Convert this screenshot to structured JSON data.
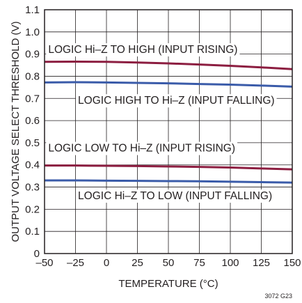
{
  "chart_data": {
    "type": "line",
    "xlabel": "TEMPERATURE (°C)",
    "ylabel": "OUTPUT VOLTAGE SELECT THRESHOLD (V)",
    "xlim": [
      -50,
      150
    ],
    "ylim": [
      0,
      1.1
    ],
    "x_ticks": [
      -50,
      -25,
      0,
      25,
      50,
      75,
      100,
      125,
      150
    ],
    "x_tick_labels": [
      "–50",
      "–25",
      "0",
      "25",
      "50",
      "75",
      "100",
      "125",
      "150"
    ],
    "y_ticks": [
      0,
      0.1,
      0.2,
      0.3,
      0.4,
      0.5,
      0.6,
      0.7,
      0.8,
      0.9,
      1.0,
      1.1
    ],
    "y_tick_labels": [
      "0",
      "0.1",
      "0.2",
      "0.3",
      "0.4",
      "0.5",
      "0.6",
      "0.7",
      "0.8",
      "0.9",
      "1.0",
      "1.1"
    ],
    "grid": true,
    "series": [
      {
        "name": "LOGIC Hi–Z TO HIGH (INPUT RISING)",
        "color": "#8c1d40",
        "x": [
          -50,
          -25,
          0,
          25,
          50,
          75,
          100,
          125,
          150
        ],
        "y": [
          0.865,
          0.866,
          0.865,
          0.862,
          0.858,
          0.853,
          0.847,
          0.84,
          0.832
        ]
      },
      {
        "name": "LOGIC HIGH TO Hi–Z (INPUT FALLING)",
        "color": "#3a5ba9",
        "x": [
          -50,
          -25,
          0,
          25,
          50,
          75,
          100,
          125,
          150
        ],
        "y": [
          0.772,
          0.773,
          0.772,
          0.77,
          0.768,
          0.765,
          0.762,
          0.758,
          0.753
        ]
      },
      {
        "name": "LOGIC LOW TO Hi–Z (INPUT RISING)",
        "color": "#8c1d40",
        "x": [
          -50,
          -25,
          0,
          25,
          50,
          75,
          100,
          125,
          150
        ],
        "y": [
          0.397,
          0.397,
          0.396,
          0.395,
          0.393,
          0.391,
          0.388,
          0.384,
          0.38
        ]
      },
      {
        "name": "LOGIC Hi–Z TO LOW (INPUT FALLING)",
        "color": "#3a5ba9",
        "x": [
          -50,
          -25,
          0,
          25,
          50,
          75,
          100,
          125,
          150
        ],
        "y": [
          0.33,
          0.33,
          0.329,
          0.328,
          0.327,
          0.326,
          0.324,
          0.322,
          0.32
        ]
      }
    ],
    "annotations": [
      {
        "text": "LOGIC Hi–Z TO HIGH (INPUT RISING)",
        "x": -47,
        "y": 0.905
      },
      {
        "text": "LOGIC HIGH TO Hi–Z (INPUT FALLING)",
        "x": -23,
        "y": 0.675
      },
      {
        "text": "LOGIC LOW TO Hi–Z (INPUT RISING)",
        "x": -47,
        "y": 0.46
      },
      {
        "text": "LOGIC Hi–Z TO LOW (INPUT FALLING)",
        "x": -23,
        "y": 0.245
      }
    ],
    "figure_code": "3072 G23"
  }
}
